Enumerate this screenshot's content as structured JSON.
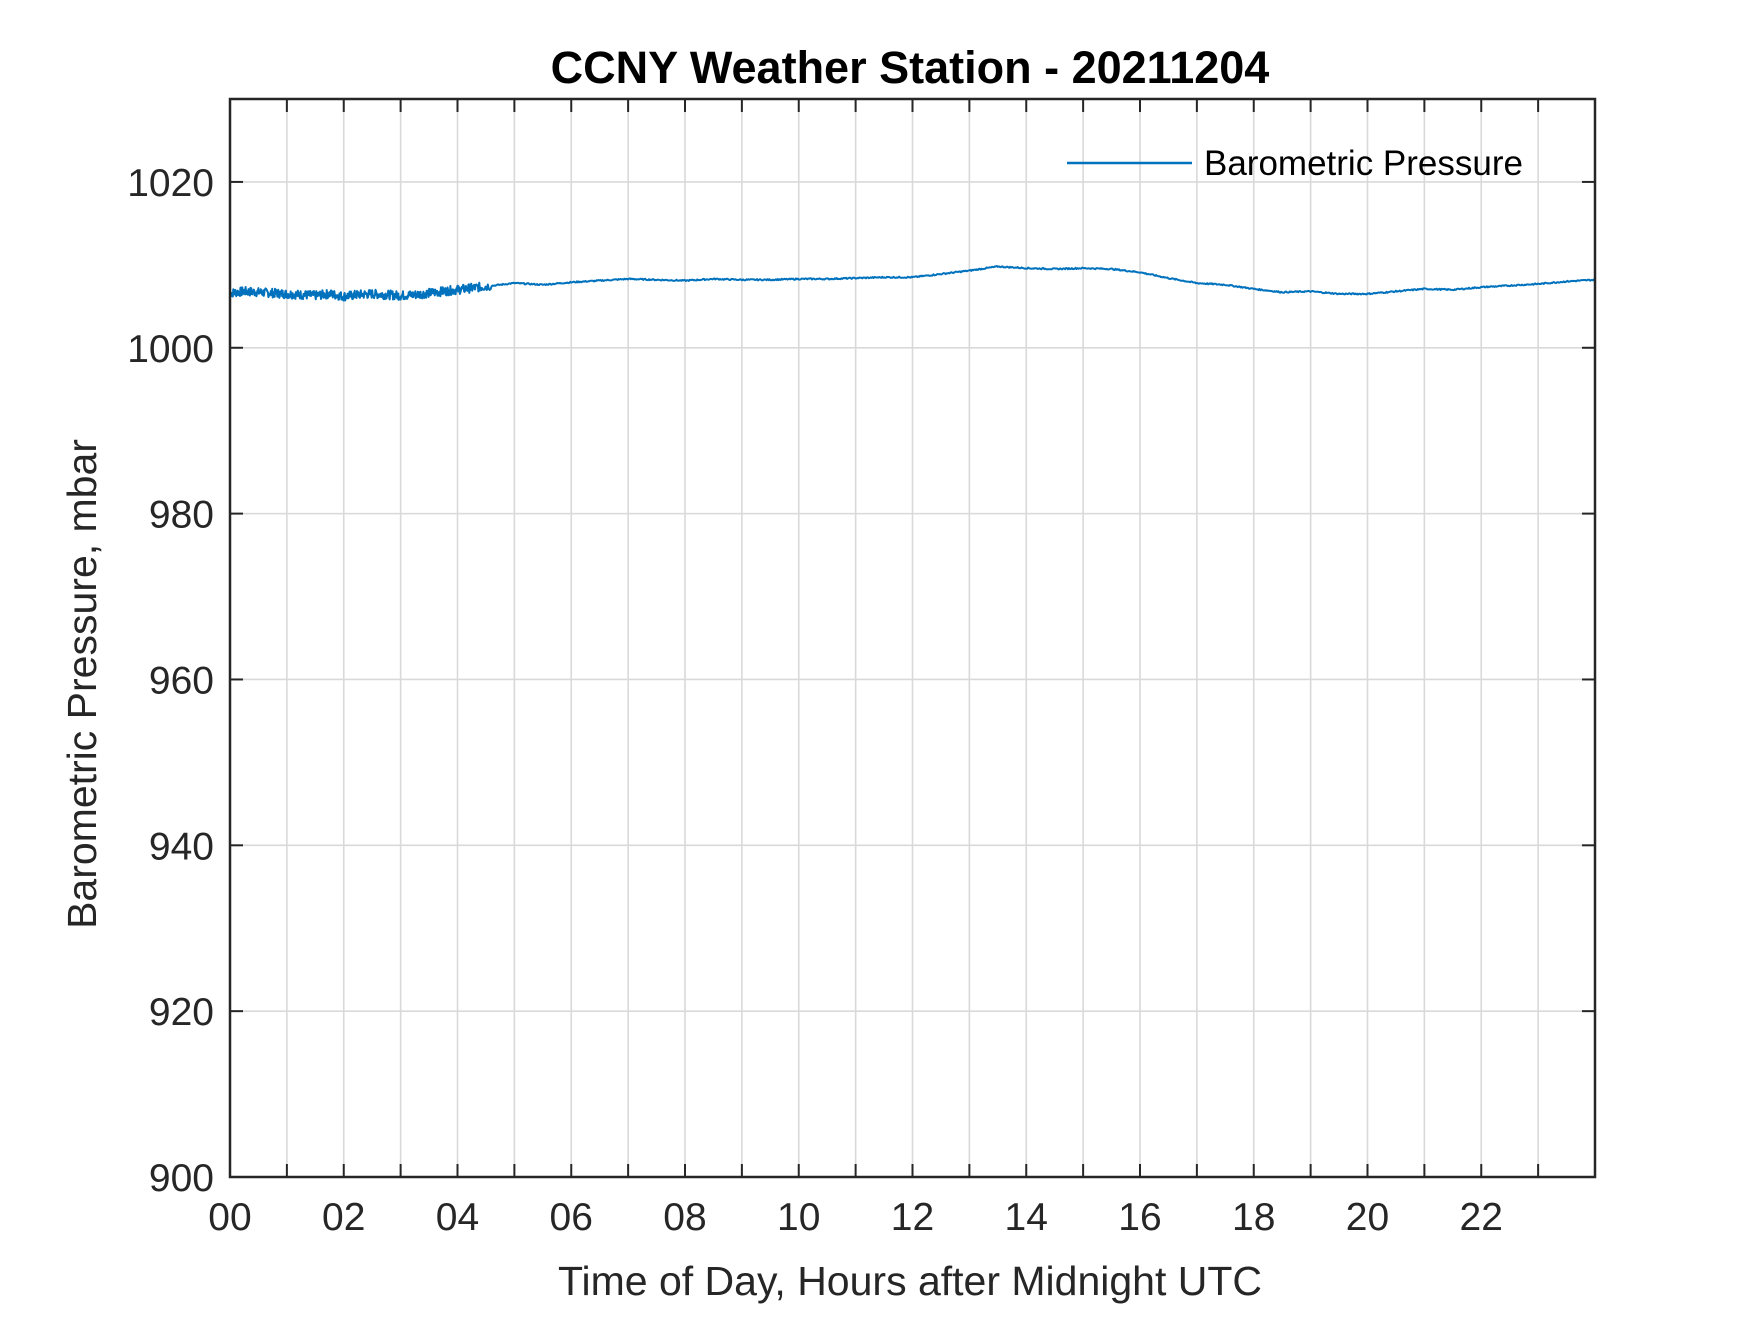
{
  "chart_data": {
    "type": "line",
    "title": "CCNY Weather Station - 20211204",
    "xlabel": "Time of Day, Hours after Midnight UTC",
    "ylabel": "Barometric Pressure, mbar",
    "xlim": [
      0,
      24
    ],
    "ylim": [
      900,
      1030
    ],
    "x_tick_values": [
      0,
      2,
      4,
      6,
      8,
      10,
      12,
      14,
      16,
      18,
      20,
      22
    ],
    "x_tick_labels": [
      "00",
      "02",
      "04",
      "06",
      "08",
      "10",
      "12",
      "14",
      "16",
      "18",
      "20",
      "22"
    ],
    "x_grid_step_hours": 1,
    "y_tick_values": [
      900,
      920,
      940,
      960,
      980,
      1000,
      1020
    ],
    "y_tick_labels": [
      "900",
      "920",
      "940",
      "960",
      "980",
      "1000",
      "1020"
    ],
    "grid": true,
    "legend_position": "top-right",
    "line_color": "#0072BD",
    "series": [
      {
        "name": "Barometric Pressure",
        "x": [
          0,
          0.25,
          0.5,
          0.75,
          1.0,
          1.25,
          1.5,
          1.75,
          2.0,
          2.25,
          2.5,
          2.75,
          3.0,
          3.25,
          3.5,
          3.75,
          4.0,
          4.25,
          4.5,
          5.0,
          5.5,
          6.0,
          6.5,
          7.0,
          7.5,
          8.0,
          8.5,
          9.0,
          9.5,
          10.0,
          10.5,
          11.0,
          11.5,
          12.0,
          12.5,
          13.0,
          13.5,
          14.0,
          14.5,
          15.0,
          15.5,
          16.0,
          16.5,
          17.0,
          17.5,
          18.0,
          18.5,
          19.0,
          19.5,
          20.0,
          20.5,
          21.0,
          21.5,
          22.0,
          22.5,
          23.0,
          23.5,
          24.0
        ],
        "values": [
          1006.6,
          1006.8,
          1006.7,
          1006.6,
          1006.5,
          1006.4,
          1006.3,
          1006.5,
          1006.2,
          1006.4,
          1006.5,
          1006.4,
          1006.3,
          1006.4,
          1006.6,
          1006.8,
          1007.0,
          1007.2,
          1007.4,
          1007.8,
          1007.6,
          1007.9,
          1008.1,
          1008.3,
          1008.2,
          1008.1,
          1008.3,
          1008.2,
          1008.2,
          1008.3,
          1008.3,
          1008.4,
          1008.5,
          1008.5,
          1008.9,
          1009.3,
          1009.8,
          1009.6,
          1009.5,
          1009.6,
          1009.5,
          1009.1,
          1008.4,
          1007.8,
          1007.6,
          1007.1,
          1006.7,
          1006.8,
          1006.5,
          1006.5,
          1006.8,
          1007.1,
          1007.0,
          1007.3,
          1007.5,
          1007.7,
          1008.0,
          1008.2
        ]
      }
    ]
  }
}
